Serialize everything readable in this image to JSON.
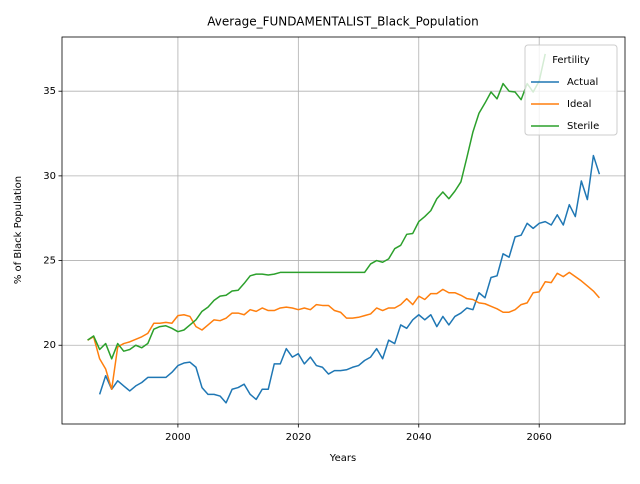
{
  "chart_data": {
    "type": "line",
    "title": "Average_FUNDAMENTALIST_Black_Population",
    "x_label": "Years",
    "y_label": "% of Black Population",
    "x": [
      1985,
      1986,
      1987,
      1988,
      1989,
      1990,
      1991,
      1992,
      1993,
      1994,
      1995,
      1996,
      1997,
      1998,
      1999,
      2000,
      2001,
      2002,
      2003,
      2004,
      2005,
      2006,
      2007,
      2008,
      2009,
      2010,
      2011,
      2012,
      2013,
      2014,
      2015,
      2016,
      2017,
      2018,
      2019,
      2020,
      2021,
      2022,
      2023,
      2024,
      2025,
      2026,
      2027,
      2028,
      2029,
      2030,
      2031,
      2032,
      2033,
      2034,
      2035,
      2036,
      2037,
      2038,
      2039,
      2040,
      2041,
      2042,
      2043,
      2044,
      2045,
      2046,
      2047,
      2048,
      2049,
      2050,
      2051,
      2052,
      2053,
      2054,
      2055,
      2056,
      2057,
      2058,
      2059,
      2060,
      2061,
      2062,
      2063,
      2064,
      2065,
      2066,
      2067,
      2068,
      2069,
      2070
    ],
    "series": [
      {
        "name": "Actual",
        "color": "#1f77b4",
        "values": [
          null,
          null,
          17.1,
          18.2,
          17.4,
          17.9,
          17.6,
          17.3,
          17.6,
          17.8,
          18.1,
          18.1,
          18.1,
          18.1,
          18.4,
          18.8,
          18.95,
          19.0,
          18.7,
          17.5,
          17.1,
          17.1,
          17.0,
          16.6,
          17.4,
          17.5,
          17.7,
          17.1,
          16.8,
          17.4,
          17.4,
          18.9,
          18.9,
          19.8,
          19.3,
          19.5,
          18.9,
          19.3,
          18.8,
          18.7,
          18.3,
          18.5,
          18.5,
          18.55,
          18.7,
          18.8,
          19.1,
          19.3,
          19.8,
          19.2,
          20.3,
          20.1,
          21.2,
          21.0,
          21.5,
          21.8,
          21.5,
          21.8,
          21.1,
          21.7,
          21.2,
          21.7,
          21.9,
          22.2,
          22.1,
          23.1,
          22.8,
          24.0,
          24.1,
          25.4,
          25.2,
          26.4,
          26.5,
          27.2,
          26.9,
          27.2,
          27.3,
          27.1,
          27.7,
          27.1,
          28.3,
          27.6,
          29.7,
          28.6,
          31.2,
          30.1
        ]
      },
      {
        "name": "Ideal",
        "color": "#ff7f0e",
        "values": [
          20.3,
          20.5,
          19.2,
          18.6,
          17.4,
          19.9,
          20.1,
          20.2,
          20.35,
          20.5,
          20.7,
          21.3,
          21.3,
          21.35,
          21.3,
          21.75,
          21.8,
          21.7,
          21.1,
          20.9,
          21.2,
          21.5,
          21.45,
          21.6,
          21.9,
          21.9,
          21.8,
          22.1,
          22.0,
          22.2,
          22.05,
          22.05,
          22.2,
          22.25,
          22.2,
          22.1,
          22.2,
          22.1,
          22.4,
          22.35,
          22.35,
          22.05,
          21.95,
          21.6,
          21.6,
          21.65,
          21.75,
          21.85,
          22.2,
          22.05,
          22.2,
          22.2,
          22.4,
          22.75,
          22.4,
          22.9,
          22.7,
          23.05,
          23.05,
          23.3,
          23.1,
          23.1,
          22.95,
          22.75,
          22.7,
          22.5,
          22.45,
          22.3,
          22.15,
          21.95,
          21.95,
          22.1,
          22.4,
          22.5,
          23.1,
          23.15,
          23.75,
          23.7,
          24.25,
          24.05,
          24.3,
          24.05,
          23.8,
          23.5,
          23.2,
          22.8
        ]
      },
      {
        "name": "Sterile",
        "color": "#2ca02c",
        "values": [
          20.3,
          20.55,
          19.75,
          20.1,
          19.2,
          20.1,
          19.65,
          19.75,
          20.0,
          19.85,
          20.1,
          20.95,
          21.1,
          21.15,
          21.0,
          20.8,
          20.9,
          21.2,
          21.5,
          22.0,
          22.25,
          22.65,
          22.9,
          22.95,
          23.2,
          23.25,
          23.65,
          24.1,
          24.2,
          24.2,
          24.15,
          24.2,
          24.3,
          24.3,
          24.3,
          24.3,
          24.3,
          24.3,
          24.3,
          24.3,
          24.3,
          24.3,
          24.3,
          24.3,
          24.3,
          24.3,
          24.3,
          24.8,
          25.0,
          24.9,
          25.1,
          25.7,
          25.9,
          26.55,
          26.6,
          27.3,
          27.6,
          27.95,
          28.65,
          29.05,
          28.65,
          29.1,
          29.65,
          31.1,
          32.6,
          33.7,
          34.3,
          34.95,
          34.55,
          35.45,
          35.0,
          34.95,
          34.5,
          35.45,
          34.95,
          35.6,
          37.2,
          null,
          null,
          null,
          null,
          null,
          null,
          null,
          null,
          null
        ]
      }
    ],
    "xlim": [
      1980.75,
      2074.25
    ],
    "xticks": [
      2000,
      2020,
      2040,
      2060
    ],
    "ylim": [
      15.35,
      38.2
    ],
    "yticks": [
      20,
      25,
      30,
      35
    ],
    "grid": true,
    "legend_title": "Fertility",
    "legend_position": "upper-right"
  }
}
